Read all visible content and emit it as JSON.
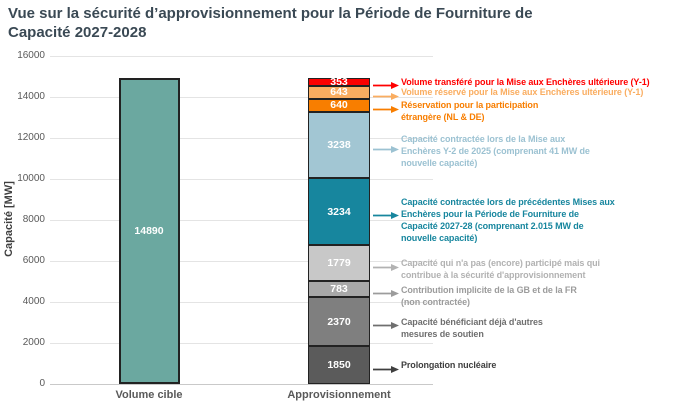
{
  "title": "Vue sur la sécurité d’approvisionnement pour la Période de Fourniture de Capacité 2027-2028",
  "chart_data": {
    "type": "bar",
    "stacked": true,
    "title": "Vue sur la sécurité d’approvisionnement pour la Période de Fourniture de Capacité 2027-2028",
    "xlabel": "",
    "ylabel": "Capacité [MW]",
    "ylim": [
      0,
      16000
    ],
    "yticks": [
      0,
      2000,
      4000,
      6000,
      8000,
      10000,
      12000,
      14000,
      16000
    ],
    "grid": true,
    "legend": "none (direct annotations with arrows)",
    "categories": [
      "Volume cible",
      "Approvisionnement"
    ],
    "bars": [
      {
        "label": "Volume cible",
        "segment_order": "top-to-bottom",
        "segments": [
          {
            "value": 14890,
            "value_label": "14890",
            "color": "#6BA8A0",
            "annotation": null
          }
        ]
      },
      {
        "label": "Approvisionnement",
        "segment_order": "top-to-bottom",
        "segments": [
          {
            "value": 353,
            "value_label": "353",
            "color": "#FB0000",
            "annotation": {
              "color": "#FF0000",
              "lines": [
                "Volume transféré pour la Mise aux Enchères ultérieure (Y-1)"
              ]
            }
          },
          {
            "value": 643,
            "value_label": "643",
            "color": "#FAAD60",
            "annotation": {
              "color": "#FAAD60",
              "lines": [
                "Volume réservé pour la Mise aux Enchères ultérieure (Y-1)"
              ]
            }
          },
          {
            "value": 640,
            "value_label": "640",
            "color": "#F87E00",
            "annotation": {
              "color": "#F87E00",
              "lines": [
                "Réservation pour la participation",
                "étrangère (NL & DE)"
              ]
            }
          },
          {
            "value": 3238,
            "value_label": "3238",
            "color": "#A2C6D3",
            "annotation": {
              "color": "#9CC2D2",
              "lines": [
                "Capacité contractée lors de la Mise aux",
                "Enchères Y-2 de 2025 (comprenant 41 MW de",
                "nouvelle capacité)"
              ]
            }
          },
          {
            "value": 3234,
            "value_label": "3234",
            "color": "#17869E",
            "annotation": {
              "color": "#17869E",
              "lines": [
                "Capacité contractée lors de précédentes Mises aux",
                "Enchères pour la Période de Fourniture de",
                "Capacité 2027-28 (comprenant 2.015 MW de",
                "nouvelle capacité)"
              ]
            }
          },
          {
            "value": 1779,
            "value_label": "1779",
            "color": "#C8C8C8",
            "annotation": {
              "color": "#B2B2B2",
              "lines": [
                "Capacité qui n'a pas (encore) participé mais qui",
                "contribue à la sécurité d'approvisionnement"
              ]
            }
          },
          {
            "value": 783,
            "value_label": "783",
            "color": "#A8A8A8",
            "annotation": {
              "color": "#9C9C9C",
              "lines": [
                "Contribution implicite de la GB et de la FR",
                "(non contractée)"
              ]
            }
          },
          {
            "value": 2370,
            "value_label": "2370",
            "color": "#7F7F7F",
            "annotation": {
              "color": "#6F6F6F",
              "lines": [
                "Capacité bénéficiant déjà d'autres",
                "mesures de soutien"
              ]
            }
          },
          {
            "value": 1850,
            "value_label": "1850",
            "color": "#5B5B5B",
            "annotation": {
              "color": "#3F3F3F",
              "lines": [
                "Prolongation nucléaire"
              ]
            }
          }
        ]
      }
    ]
  },
  "colors": {
    "background": "#FFFFFF",
    "title_text": "#3A4954",
    "gridline": "#E4E4E4",
    "axis_line": "#C9C9C9",
    "tick_text": "#595959",
    "bar_border": "#222222",
    "segment_value_text": "#FFFFFF"
  }
}
